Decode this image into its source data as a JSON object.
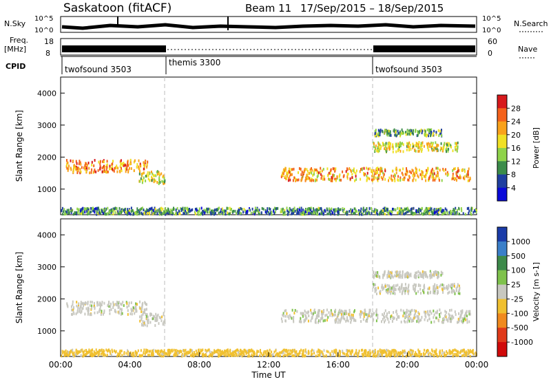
{
  "header": {
    "station": "Saskatoon (fitACF)",
    "beam": "Beam 11",
    "dates": "17/Sep/2015 – 18/Sep/2015"
  },
  "top_panels": {
    "nsky_label": "N.Sky",
    "nsky_scale_low": "10^0",
    "nsky_scale_high": "10^5",
    "nsearch_label": "N.Search",
    "freq_label_1": "Freq.",
    "freq_label_2": "[MHz]",
    "freq_ticks": [
      "18",
      "8"
    ],
    "nave_ticks": [
      "60",
      "0"
    ],
    "nave_label": "Nave",
    "cpid_label": "CPID",
    "cpid_segments": [
      {
        "label": "twofsound 3503",
        "start_hour": 0
      },
      {
        "label": "themis 3300",
        "start_hour": 6
      },
      {
        "label": "twofsound 3503",
        "start_hour": 18
      }
    ]
  },
  "power_colorbar": {
    "title": "Power [dB]",
    "ticks": [
      "28",
      "24",
      "20",
      "16",
      "12",
      "8",
      "4"
    ],
    "colors": [
      "#d7191c",
      "#f4621b",
      "#f9a21b",
      "#f0e024",
      "#8fd34a",
      "#3c8c4a",
      "#1f3fa0",
      "#0a0ad8"
    ]
  },
  "velocity_colorbar": {
    "title": "Velocity [m s-1]",
    "ticks": [
      "1000",
      "500",
      "100",
      "25",
      "-25",
      "-100",
      "-500",
      "-1000"
    ],
    "colors": [
      "#1a3ba8",
      "#3a7fc9",
      "#3d8a4a",
      "#7fc24c",
      "#c8c8c0",
      "#f0c030",
      "#f08a1e",
      "#e03a1a",
      "#d00a0a"
    ]
  },
  "chart_data": {
    "type": "heatmap",
    "panels": [
      {
        "name": "Power",
        "ylabel": "Slant Range [km]",
        "ylim": [
          200,
          4500
        ],
        "yticks": [
          1000,
          2000,
          3000,
          4000
        ],
        "xlim": [
          0,
          24
        ],
        "mode": "power"
      },
      {
        "name": "Velocity",
        "ylabel": "Slant Range [km]",
        "ylim": [
          200,
          4500
        ],
        "yticks": [
          1000,
          2000,
          3000,
          4000
        ],
        "xlim": [
          0,
          24
        ],
        "mode": "velocity"
      }
    ],
    "xlabel": "Time UT",
    "xticks": [
      "00:00",
      "04:00",
      "08:00",
      "12:00",
      "16:00",
      "20:00",
      "00:00"
    ],
    "xtick_hours": [
      0,
      4,
      8,
      12,
      16,
      20,
      24
    ],
    "scatter_bands": [
      {
        "t0": 0.3,
        "t1": 5.0,
        "r0": 1550,
        "r1": 1950,
        "power": 22,
        "velocity": 0
      },
      {
        "t0": 4.5,
        "t1": 6.0,
        "r0": 1200,
        "r1": 1600,
        "power": 15,
        "velocity": 0
      },
      {
        "t0": 12.7,
        "t1": 23.6,
        "r0": 1300,
        "r1": 1700,
        "power": 20,
        "velocity": 0
      },
      {
        "t0": 18.0,
        "t1": 23.0,
        "r0": 2200,
        "r1": 2500,
        "power": 15,
        "velocity": 0
      },
      {
        "t0": 18.0,
        "t1": 22.0,
        "r0": 2700,
        "r1": 2900,
        "power": 10,
        "velocity": 0
      },
      {
        "t0": 0.0,
        "t1": 24.0,
        "r0": 250,
        "r1": 450,
        "power": 8,
        "velocity": -50
      }
    ]
  }
}
